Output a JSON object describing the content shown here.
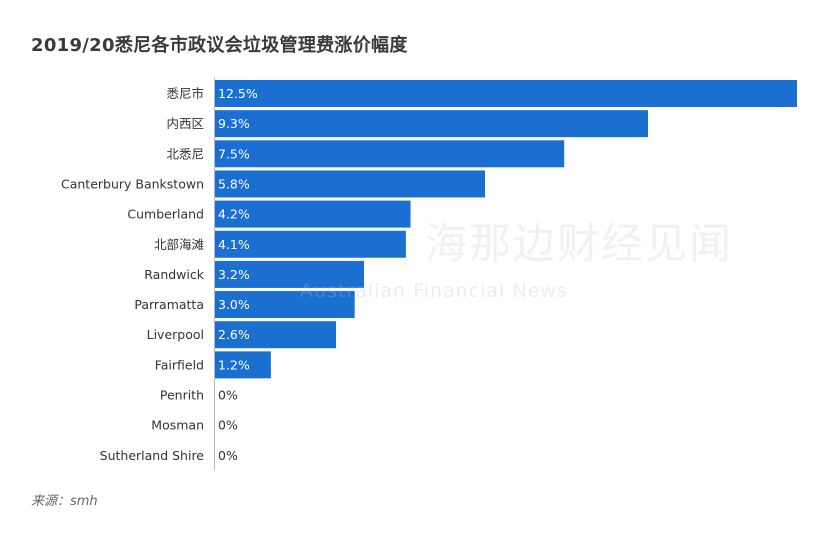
{
  "chart_data": {
    "type": "bar",
    "orientation": "horizontal",
    "title": "2019/20悉尼各市政议会垃圾管理费涨价幅度",
    "categories": [
      "悉尼市",
      "内西区",
      "北悉尼",
      "Canterbury Bankstown",
      "Cumberland",
      "北部海滩",
      "Randwick",
      "Parramatta",
      "Liverpool",
      "Fairfield",
      "Penrith",
      "Mosman",
      "Sutherland Shire"
    ],
    "values": [
      12.5,
      9.3,
      7.5,
      5.8,
      4.2,
      4.1,
      3.2,
      3.0,
      2.6,
      1.2,
      0,
      0,
      0
    ],
    "value_labels": [
      "12.5%",
      "9.3%",
      "7.5%",
      "5.8%",
      "4.2%",
      "4.1%",
      "3.2%",
      "3.0%",
      "2.6%",
      "1.2%",
      "0%",
      "0%",
      "0%"
    ],
    "unit": "%",
    "xlim": [
      0,
      12.5
    ],
    "grid": false,
    "bar_color": "#1a6fd1",
    "label_color_inside": "#ffffff",
    "label_color_outside": "#333333"
  },
  "source_text": "来源：smh",
  "watermark": {
    "cn": "海那边财经见闻",
    "en": "Australian Financial News"
  }
}
